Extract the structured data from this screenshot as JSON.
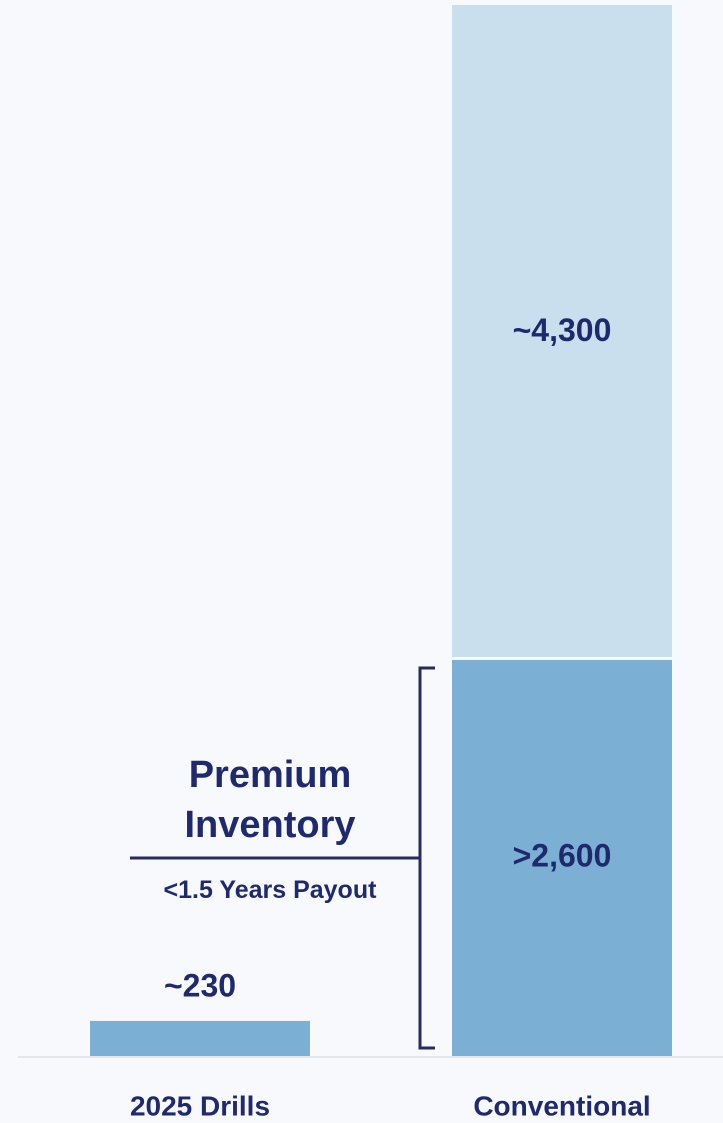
{
  "chart_data": {
    "type": "stacked_bar",
    "categories": [
      "2025 Drills",
      "Conventional"
    ],
    "series": [
      {
        "color": "#7bafd4",
        "values": [
          230,
          2600
        ],
        "value_labels": [
          "~230",
          ">2,600"
        ]
      },
      {
        "color": "#c9dfee",
        "values": [
          null,
          4300
        ],
        "value_labels": [
          null,
          "~4,300"
        ]
      }
    ],
    "ylim": [
      0,
      6900
    ],
    "annotation": {
      "title": "Premium Inventory",
      "subtitle": "<1.5 Years Payout"
    }
  }
}
